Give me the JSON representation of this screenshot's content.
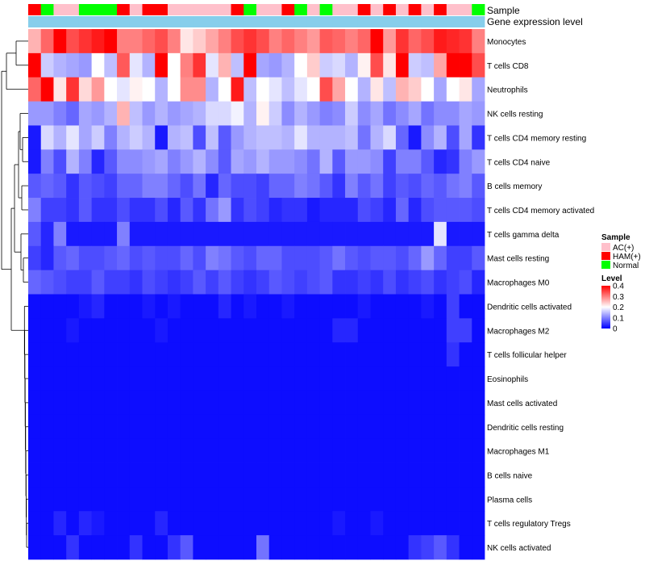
{
  "chart_data": {
    "type": "heatmap",
    "annotation_labels": [
      "Sample",
      "Gene expression level"
    ],
    "columns": 36,
    "rows": [
      "Monocytes",
      "T cells CD8",
      "Neutrophils",
      "NK cells resting",
      "T cells CD4 memory resting",
      "T cells CD4 naive",
      "B cells memory",
      "T cells CD4 memory activated",
      "T cells gamma delta",
      "Mast cells resting",
      "Macrophages M0",
      "Dendritic cells activated",
      "Macrophages M2",
      "T cells follicular helper",
      "Eosinophils",
      "Mast cells activated",
      "Dendritic cells resting",
      "Macrophages M1",
      "B cells naive",
      "Plasma cells",
      "T cells regulatory  Tregs",
      "NK cells activated"
    ],
    "sample_groups": [
      "HAM(+)",
      "Normal",
      "AC(+)",
      "AC(+)",
      "Normal",
      "Normal",
      "Normal",
      "HAM(+)",
      "AC(+)",
      "HAM(+)",
      "HAM(+)",
      "AC(+)",
      "AC(+)",
      "AC(+)",
      "AC(+)",
      "AC(+)",
      "HAM(+)",
      "Normal",
      "AC(+)",
      "AC(+)",
      "HAM(+)",
      "Normal",
      "AC(+)",
      "Normal",
      "AC(+)",
      "AC(+)",
      "HAM(+)",
      "AC(+)",
      "HAM(+)",
      "AC(+)",
      "HAM(+)",
      "AC(+)",
      "HAM(+)",
      "AC(+)",
      "AC(+)",
      "Normal"
    ],
    "matrix": [
      [
        0.26,
        0.32,
        0.4,
        0.34,
        0.36,
        0.38,
        0.4,
        0.3,
        0.3,
        0.32,
        0.34,
        0.3,
        0.22,
        0.24,
        0.27,
        0.3,
        0.34,
        0.36,
        0.34,
        0.3,
        0.32,
        0.3,
        0.28,
        0.33,
        0.32,
        0.3,
        0.32,
        0.4,
        0.28,
        0.36,
        0.32,
        0.34,
        0.38,
        0.37,
        0.36,
        0.3
      ],
      [
        0.4,
        0.16,
        0.14,
        0.13,
        0.12,
        0.2,
        0.15,
        0.33,
        0.18,
        0.14,
        0.4,
        0.2,
        0.3,
        0.36,
        0.18,
        0.26,
        0.15,
        0.4,
        0.13,
        0.12,
        0.14,
        0.2,
        0.24,
        0.16,
        0.17,
        0.14,
        0.21,
        0.34,
        0.22,
        0.4,
        0.16,
        0.15,
        0.27,
        0.4,
        0.4,
        0.34
      ],
      [
        0.32,
        0.4,
        0.22,
        0.36,
        0.23,
        0.28,
        0.2,
        0.18,
        0.21,
        0.2,
        0.14,
        0.2,
        0.29,
        0.29,
        0.14,
        0.2,
        0.38,
        0.15,
        0.2,
        0.18,
        0.15,
        0.18,
        0.2,
        0.34,
        0.27,
        0.2,
        0.14,
        0.22,
        0.15,
        0.26,
        0.24,
        0.2,
        0.13,
        0.2,
        0.22,
        0.13
      ],
      [
        0.12,
        0.12,
        0.1,
        0.08,
        0.13,
        0.12,
        0.14,
        0.26,
        0.15,
        0.12,
        0.14,
        0.12,
        0.13,
        0.14,
        0.17,
        0.17,
        0.19,
        0.14,
        0.21,
        0.16,
        0.11,
        0.14,
        0.12,
        0.1,
        0.11,
        0.16,
        0.11,
        0.13,
        0.09,
        0.11,
        0.13,
        0.09,
        0.11,
        0.11,
        0.13,
        0.12
      ],
      [
        0.02,
        0.17,
        0.14,
        0.18,
        0.13,
        0.16,
        0.1,
        0.14,
        0.16,
        0.14,
        0.02,
        0.14,
        0.15,
        0.06,
        0.15,
        0.07,
        0.12,
        0.14,
        0.15,
        0.15,
        0.14,
        0.18,
        0.14,
        0.14,
        0.14,
        0.15,
        0.09,
        0.14,
        0.17,
        0.08,
        0.02,
        0.11,
        0.14,
        0.06,
        0.13,
        0.04
      ],
      [
        0.02,
        0.1,
        0.06,
        0.14,
        0.1,
        0.03,
        0.07,
        0.11,
        0.11,
        0.12,
        0.13,
        0.1,
        0.12,
        0.14,
        0.11,
        0.07,
        0.13,
        0.12,
        0.14,
        0.12,
        0.12,
        0.11,
        0.09,
        0.14,
        0.07,
        0.12,
        0.12,
        0.11,
        0.05,
        0.1,
        0.1,
        0.07,
        0.03,
        0.04,
        0.1,
        0.12
      ],
      [
        0.07,
        0.08,
        0.07,
        0.04,
        0.07,
        0.06,
        0.05,
        0.08,
        0.08,
        0.1,
        0.1,
        0.08,
        0.06,
        0.09,
        0.03,
        0.08,
        0.06,
        0.06,
        0.05,
        0.08,
        0.08,
        0.1,
        0.09,
        0.07,
        0.04,
        0.1,
        0.07,
        0.09,
        0.05,
        0.07,
        0.06,
        0.08,
        0.07,
        0.09,
        0.1,
        0.07
      ],
      [
        0.1,
        0.05,
        0.05,
        0.04,
        0.07,
        0.04,
        0.04,
        0.06,
        0.04,
        0.04,
        0.06,
        0.03,
        0.07,
        0.04,
        0.09,
        0.12,
        0.04,
        0.06,
        0.05,
        0.03,
        0.04,
        0.04,
        0.02,
        0.03,
        0.03,
        0.03,
        0.06,
        0.05,
        0.03,
        0.08,
        0.03,
        0.06,
        0.07,
        0.07,
        0.07,
        0.06
      ],
      [
        0.07,
        0.03,
        0.1,
        0.02,
        0.02,
        0.02,
        0.02,
        0.1,
        0.02,
        0.02,
        0.02,
        0.02,
        0.02,
        0.02,
        0.02,
        0.02,
        0.02,
        0.02,
        0.02,
        0.02,
        0.02,
        0.02,
        0.02,
        0.02,
        0.02,
        0.02,
        0.02,
        0.02,
        0.02,
        0.02,
        0.02,
        0.02,
        0.18,
        0.02,
        0.02,
        0.02
      ],
      [
        0.05,
        0.03,
        0.07,
        0.08,
        0.06,
        0.06,
        0.07,
        0.08,
        0.06,
        0.07,
        0.06,
        0.06,
        0.08,
        0.06,
        0.1,
        0.09,
        0.07,
        0.06,
        0.08,
        0.08,
        0.06,
        0.06,
        0.06,
        0.07,
        0.09,
        0.07,
        0.06,
        0.07,
        0.07,
        0.06,
        0.08,
        0.12,
        0.08,
        0.05,
        0.05,
        0.07
      ],
      [
        0.08,
        0.07,
        0.06,
        0.05,
        0.05,
        0.07,
        0.05,
        0.05,
        0.04,
        0.06,
        0.05,
        0.04,
        0.05,
        0.07,
        0.05,
        0.07,
        0.05,
        0.04,
        0.05,
        0.07,
        0.06,
        0.05,
        0.06,
        0.07,
        0.04,
        0.04,
        0.05,
        0.04,
        0.06,
        0.04,
        0.05,
        0.06,
        0.04,
        0.05,
        0.06,
        0.03
      ],
      [
        0.01,
        0.01,
        0.01,
        0.01,
        0.02,
        0.03,
        0.01,
        0.01,
        0.01,
        0.02,
        0.01,
        0.02,
        0.01,
        0.01,
        0.01,
        0.03,
        0.01,
        0.02,
        0.01,
        0.01,
        0.02,
        0.01,
        0.01,
        0.01,
        0.01,
        0.01,
        0.02,
        0.01,
        0.01,
        0.01,
        0.01,
        0.02,
        0.01,
        0.05,
        0.01,
        0.01
      ],
      [
        0.01,
        0.01,
        0.01,
        0.02,
        0.01,
        0.01,
        0.01,
        0.01,
        0.01,
        0.01,
        0.02,
        0.01,
        0.01,
        0.01,
        0.01,
        0.01,
        0.01,
        0.01,
        0.01,
        0.01,
        0.01,
        0.01,
        0.01,
        0.01,
        0.03,
        0.03,
        0.01,
        0.01,
        0.01,
        0.01,
        0.01,
        0.01,
        0.01,
        0.05,
        0.05,
        0.01
      ],
      [
        0.01,
        0.01,
        0.01,
        0.01,
        0.01,
        0.01,
        0.01,
        0.01,
        0.01,
        0.01,
        0.01,
        0.01,
        0.01,
        0.01,
        0.01,
        0.01,
        0.01,
        0.01,
        0.01,
        0.01,
        0.01,
        0.01,
        0.01,
        0.01,
        0.01,
        0.01,
        0.01,
        0.01,
        0.01,
        0.01,
        0.01,
        0.01,
        0.01,
        0.04,
        0.01,
        0.01
      ],
      [
        0.01,
        0.01,
        0.01,
        0.01,
        0.01,
        0.01,
        0.01,
        0.01,
        0.01,
        0.01,
        0.01,
        0.01,
        0.01,
        0.01,
        0.01,
        0.01,
        0.01,
        0.01,
        0.01,
        0.01,
        0.01,
        0.01,
        0.01,
        0.01,
        0.01,
        0.01,
        0.01,
        0.01,
        0.01,
        0.01,
        0.01,
        0.01,
        0.01,
        0.01,
        0.01,
        0.01
      ],
      [
        0.01,
        0.01,
        0.01,
        0.01,
        0.01,
        0.01,
        0.01,
        0.01,
        0.01,
        0.01,
        0.01,
        0.01,
        0.01,
        0.01,
        0.01,
        0.01,
        0.01,
        0.01,
        0.01,
        0.01,
        0.01,
        0.01,
        0.01,
        0.01,
        0.01,
        0.01,
        0.01,
        0.01,
        0.01,
        0.01,
        0.01,
        0.01,
        0.01,
        0.01,
        0.01,
        0.01
      ],
      [
        0.01,
        0.01,
        0.01,
        0.01,
        0.01,
        0.01,
        0.01,
        0.01,
        0.01,
        0.01,
        0.01,
        0.01,
        0.01,
        0.01,
        0.01,
        0.01,
        0.01,
        0.01,
        0.01,
        0.01,
        0.01,
        0.01,
        0.01,
        0.01,
        0.01,
        0.01,
        0.01,
        0.01,
        0.01,
        0.01,
        0.01,
        0.01,
        0.01,
        0.01,
        0.01,
        0.01
      ],
      [
        0.01,
        0.01,
        0.01,
        0.01,
        0.01,
        0.01,
        0.01,
        0.01,
        0.01,
        0.01,
        0.01,
        0.01,
        0.01,
        0.01,
        0.01,
        0.01,
        0.01,
        0.01,
        0.01,
        0.01,
        0.01,
        0.01,
        0.01,
        0.01,
        0.01,
        0.01,
        0.01,
        0.01,
        0.01,
        0.01,
        0.01,
        0.01,
        0.01,
        0.01,
        0.01,
        0.01
      ],
      [
        0.01,
        0.01,
        0.01,
        0.01,
        0.01,
        0.01,
        0.01,
        0.01,
        0.01,
        0.01,
        0.01,
        0.01,
        0.01,
        0.01,
        0.01,
        0.01,
        0.01,
        0.01,
        0.01,
        0.01,
        0.01,
        0.01,
        0.01,
        0.01,
        0.01,
        0.01,
        0.01,
        0.01,
        0.01,
        0.01,
        0.01,
        0.01,
        0.01,
        0.01,
        0.01,
        0.01
      ],
      [
        0.01,
        0.01,
        0.01,
        0.01,
        0.01,
        0.01,
        0.01,
        0.01,
        0.01,
        0.01,
        0.01,
        0.01,
        0.01,
        0.01,
        0.01,
        0.01,
        0.01,
        0.01,
        0.01,
        0.01,
        0.01,
        0.01,
        0.01,
        0.01,
        0.01,
        0.01,
        0.01,
        0.01,
        0.01,
        0.01,
        0.01,
        0.01,
        0.01,
        0.01,
        0.01,
        0.01
      ],
      [
        0.01,
        0.01,
        0.03,
        0.01,
        0.03,
        0.02,
        0.01,
        0.01,
        0.01,
        0.01,
        0.03,
        0.01,
        0.01,
        0.01,
        0.01,
        0.01,
        0.01,
        0.01,
        0.01,
        0.01,
        0.01,
        0.01,
        0.01,
        0.01,
        0.02,
        0.01,
        0.01,
        0.02,
        0.01,
        0.01,
        0.01,
        0.01,
        0.01,
        0.01,
        0.01,
        0.01
      ],
      [
        0.01,
        0.01,
        0.01,
        0.04,
        0.01,
        0.01,
        0.01,
        0.01,
        0.04,
        0.01,
        0.01,
        0.04,
        0.07,
        0.01,
        0.01,
        0.01,
        0.01,
        0.01,
        0.09,
        0.01,
        0.01,
        0.01,
        0.01,
        0.01,
        0.01,
        0.01,
        0.01,
        0.01,
        0.01,
        0.01,
        0.04,
        0.05,
        0.07,
        0.04,
        0.01,
        0.01
      ]
    ],
    "legend_sample": {
      "title": "Sample",
      "entries": [
        {
          "label": "AC(+)",
          "color": "#FFC0CB"
        },
        {
          "label": "HAM(+)",
          "color": "#FF0000"
        },
        {
          "label": "Normal",
          "color": "#00FF00"
        }
      ]
    },
    "legend_level": {
      "title": "Level",
      "ticks": [
        "0.4",
        "0.3",
        "0.2",
        "0.1",
        "0"
      ],
      "range": [
        0,
        0.4
      ],
      "low_color": "#0000FF",
      "mid_color": "#FFFFFF",
      "high_color": "#FF0000"
    },
    "expression_band_color": "#87CEEB"
  }
}
